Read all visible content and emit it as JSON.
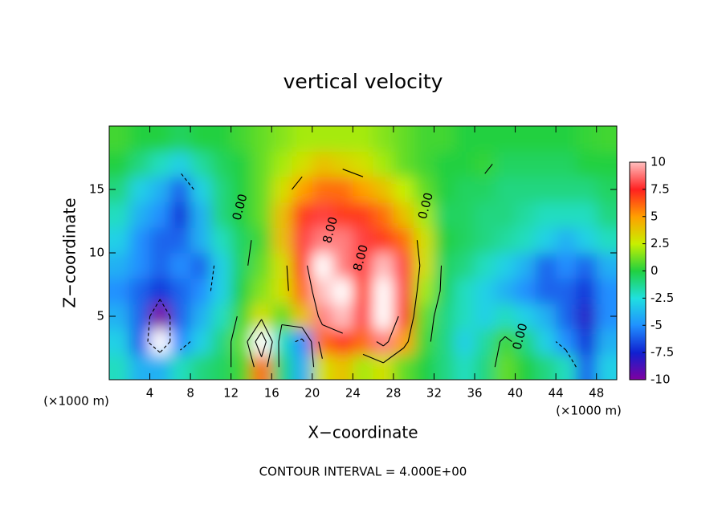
{
  "chart_data": {
    "type": "contour",
    "title": "vertical velocity",
    "x_label": "X−coordinate",
    "y_label": "Z−coordinate",
    "x_unit_left": "(×1000 m)",
    "x_unit_right": "(×1000 m)",
    "footer": "CONTOUR INTERVAL = 4.000E+00",
    "xlim": [
      0,
      50
    ],
    "ylim": [
      0,
      20
    ],
    "xticks": [
      4,
      8,
      12,
      16,
      20,
      24,
      28,
      32,
      36,
      40,
      44,
      48
    ],
    "yticks": [
      5,
      10,
      15
    ],
    "x": [
      1,
      3,
      5,
      7,
      9,
      11,
      13,
      15,
      17,
      19,
      21,
      23,
      25,
      27,
      29,
      31,
      33,
      35,
      37,
      39,
      41,
      43,
      45,
      47,
      49
    ],
    "z": [
      1,
      3,
      5,
      7,
      9,
      11,
      13,
      15,
      17,
      19
    ],
    "values": [
      [
        -2,
        -4,
        -4,
        -2,
        -1,
        -0.5,
        0.5,
        6,
        -1,
        -4,
        3,
        4,
        2,
        3,
        1,
        0,
        -1,
        -2,
        -1,
        1,
        0,
        -1,
        -2,
        -6,
        -3
      ],
      [
        -3,
        -6,
        -11,
        -5,
        -3,
        -1,
        1,
        11,
        -2,
        -5,
        6,
        7,
        6,
        9,
        5,
        0.5,
        -1,
        -3,
        -1.5,
        0.5,
        -1,
        -3,
        -5,
        -7,
        -4
      ],
      [
        -4,
        -6,
        -10,
        -6,
        -4,
        -2,
        0.5,
        3,
        1,
        4,
        9,
        10,
        8,
        11,
        7,
        1,
        -1,
        -2,
        -3,
        -2,
        -3,
        -4,
        -6,
        -8,
        -5
      ],
      [
        -5,
        -6,
        -7,
        -6,
        -5,
        -3,
        0,
        1.5,
        3,
        6,
        10,
        11,
        7,
        11,
        8,
        2,
        -0.5,
        -2,
        -3,
        -4,
        -5,
        -6,
        -6,
        -7,
        -5
      ],
      [
        -4,
        -5,
        -6,
        -5,
        -6,
        -3,
        -0.5,
        1,
        3,
        7,
        11,
        9,
        8,
        10,
        8,
        3,
        -0.5,
        -1,
        -2,
        -3,
        -4,
        -6,
        -5,
        -6,
        -4
      ],
      [
        -3,
        -5,
        -6,
        -6,
        -4,
        -2,
        -0.5,
        0.5,
        4,
        8,
        9,
        9,
        8,
        7,
        6,
        3,
        0,
        -0.5,
        -1,
        -1.5,
        -2,
        -3,
        -4,
        -3,
        -2
      ],
      [
        -2,
        -4,
        -5,
        -7,
        -4,
        -1,
        0,
        1,
        4,
        7,
        8,
        7,
        7,
        6,
        4,
        2,
        -0.5,
        -0.5,
        -1,
        -1,
        -1.5,
        -2,
        -2,
        -2,
        -1
      ],
      [
        -1,
        -3,
        -4,
        -6,
        -3,
        -1,
        0,
        1,
        3,
        5,
        6,
        6,
        5,
        4,
        2.5,
        1,
        0,
        -0.5,
        -0.5,
        -1,
        -1,
        -1,
        -1,
        -1,
        -0.5
      ],
      [
        0,
        -1,
        -2,
        -3,
        -1.5,
        -0.5,
        0,
        1,
        2,
        3,
        4,
        3.5,
        3,
        2,
        1,
        0.5,
        0,
        0,
        0.3,
        -0.5,
        -0.5,
        -0.5,
        -0.5,
        0,
        0
      ],
      [
        0.5,
        0,
        0,
        -0.5,
        0,
        0,
        0.5,
        1,
        1.5,
        2,
        2,
        2,
        2,
        1.5,
        1,
        0.5,
        0.5,
        0,
        0,
        0,
        0,
        0,
        0,
        0.3,
        0.5
      ]
    ],
    "contour_levels": [
      -8,
      -4,
      0,
      4,
      8
    ],
    "contour_labels": [
      {
        "text": "0.00",
        "x": 12.9,
        "y": 13.6
      },
      {
        "text": "8.00",
        "x": 21.8,
        "y": 11.8
      },
      {
        "text": "8.00",
        "x": 24.8,
        "y": 9.6
      },
      {
        "text": "0.00",
        "x": 31.2,
        "y": 13.7
      },
      {
        "text": "0.00",
        "x": 40.5,
        "y": 3.4
      }
    ],
    "colorbar_ticks": [
      -10,
      -7.5,
      -5,
      -2.5,
      0,
      2.5,
      5,
      7.5,
      10
    ],
    "colorscale": [
      [
        -10,
        "#8000a0"
      ],
      [
        -7.5,
        "#1020d0"
      ],
      [
        -5,
        "#2090ff"
      ],
      [
        -2.5,
        "#20e0e0"
      ],
      [
        0,
        "#20d040"
      ],
      [
        2.5,
        "#c8f000"
      ],
      [
        5,
        "#ffa000"
      ],
      [
        7.5,
        "#ff2020"
      ],
      [
        10,
        "#ffc0c0"
      ]
    ],
    "out_of_range_color": "#ffffff"
  }
}
